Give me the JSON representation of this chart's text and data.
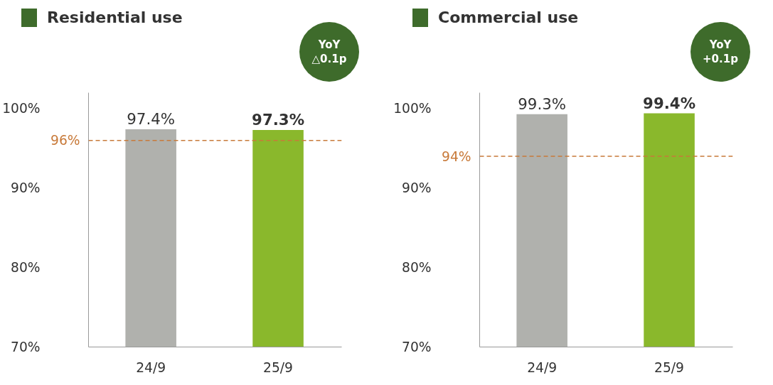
{
  "chart_data": [
    {
      "type": "bar",
      "title": "Residential use",
      "categories": [
        "24/9",
        "25/9"
      ],
      "values": [
        97.4,
        97.3
      ],
      "colors": [
        "#b0b1ad",
        "#8ab82c"
      ],
      "data_labels": true,
      "value_labels": [
        "97.4%",
        "97.3%"
      ],
      "ylim": [
        70,
        102
      ],
      "yticks": [
        {
          "value": 70,
          "label": "70%"
        },
        {
          "value": 80,
          "label": "80%"
        },
        {
          "value": 90,
          "label": "90%"
        },
        {
          "value": 100,
          "label": "100%"
        }
      ],
      "grid": false,
      "ref_lines": [
        {
          "axis": "y",
          "value": 96,
          "label": "96%",
          "color": "#c87a3a",
          "line_style": "dashed"
        }
      ],
      "annotations": [
        "YoY\n△0.1p"
      ]
    },
    {
      "type": "bar",
      "title": "Commercial use",
      "categories": [
        "24/9",
        "25/9"
      ],
      "values": [
        99.3,
        99.4
      ],
      "colors": [
        "#b0b1ad",
        "#8ab82c"
      ],
      "data_labels": true,
      "value_labels": [
        "99.3%",
        "99.4%"
      ],
      "ylim": [
        70,
        102
      ],
      "yticks": [
        {
          "value": 70,
          "label": "70%"
        },
        {
          "value": 80,
          "label": "80%"
        },
        {
          "value": 90,
          "label": "90%"
        },
        {
          "value": 100,
          "label": "100%"
        }
      ],
      "grid": false,
      "ref_lines": [
        {
          "axis": "y",
          "value": 94,
          "label": "94%",
          "color": "#c87a3a",
          "line_style": "dashed"
        }
      ],
      "annotations": [
        "YoY\n+0.1p"
      ]
    }
  ]
}
